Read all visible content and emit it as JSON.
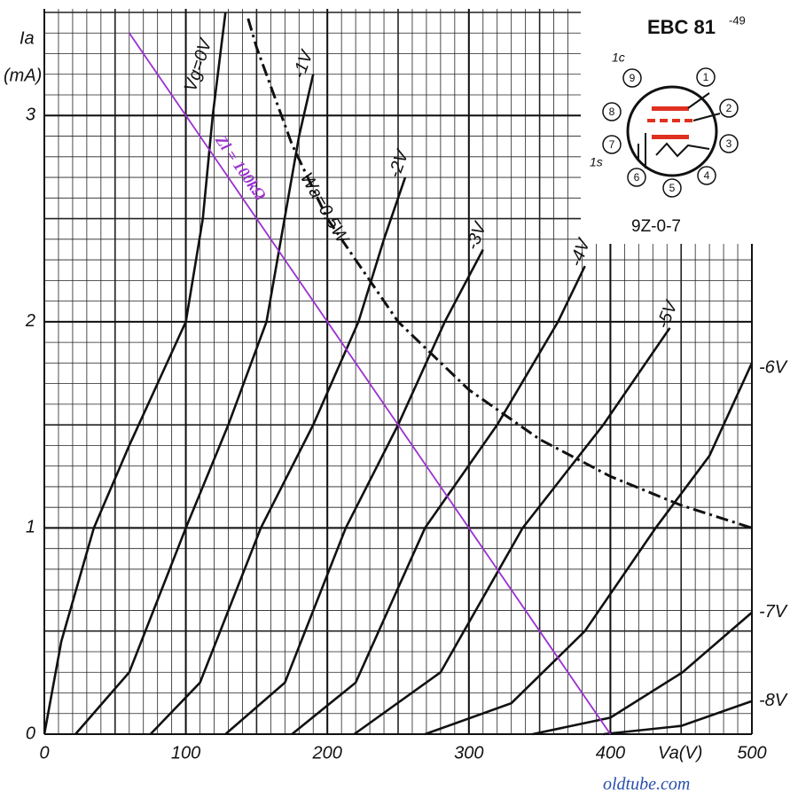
{
  "chart_data": {
    "type": "line",
    "y_label": "Ia",
    "y_unit": "(mA)",
    "x_label": "Va(V)",
    "xlim": [
      0,
      500
    ],
    "xticks": [
      0,
      100,
      200,
      300,
      400,
      500
    ],
    "ylim": [
      0,
      3.5
    ],
    "yticks": [
      0,
      1,
      2,
      3
    ],
    "grid": true,
    "series": [
      {
        "name": "Vg=0V",
        "color": "#111111",
        "x": [
          0,
          12,
          35,
          60,
          80,
          100,
          112,
          119,
          128
        ],
        "values": [
          0,
          0.45,
          1.0,
          1.4,
          1.7,
          2.0,
          2.5,
          3.0,
          3.5
        ]
      },
      {
        "name": "-1V",
        "color": "#111111",
        "x": [
          22,
          60,
          100,
          130,
          157,
          180,
          190
        ],
        "values": [
          0,
          0.3,
          1.0,
          1.5,
          2.0,
          2.9,
          3.2
        ]
      },
      {
        "name": "-2V",
        "color": "#111111",
        "x": [
          75,
          110,
          153,
          190,
          222,
          240,
          255
        ],
        "values": [
          0,
          0.25,
          1.0,
          1.5,
          2.0,
          2.4,
          2.7
        ]
      },
      {
        "name": "-3V",
        "color": "#111111",
        "x": [
          128,
          170,
          213,
          250,
          283,
          310
        ],
        "values": [
          0,
          0.25,
          1.0,
          1.5,
          2.0,
          2.35
        ]
      },
      {
        "name": "-4V",
        "color": "#111111",
        "x": [
          175,
          220,
          269,
          320,
          363,
          382
        ],
        "values": [
          0,
          0.25,
          1.0,
          1.5,
          2.0,
          2.27
        ]
      },
      {
        "name": "-5V",
        "color": "#111111",
        "x": [
          219,
          280,
          338,
          395,
          442
        ],
        "values": [
          0,
          0.3,
          1.0,
          1.5,
          1.97
        ]
      },
      {
        "name": "-6V",
        "color": "#111111",
        "x": [
          269,
          330,
          382,
          432,
          470,
          500
        ],
        "values": [
          0,
          0.15,
          0.5,
          1.0,
          1.35,
          1.8
        ]
      },
      {
        "name": "-7V",
        "color": "#111111",
        "x": [
          345,
          400,
          451,
          500
        ],
        "values": [
          0,
          0.08,
          0.3,
          0.59
        ]
      },
      {
        "name": "-8V",
        "color": "#111111",
        "x": [
          395,
          450,
          500
        ],
        "values": [
          0,
          0.04,
          0.16
        ]
      },
      {
        "name": "Wa=0.5W",
        "color": "#111111",
        "style": "dash-dot",
        "x": [
          144,
          150,
          175,
          200,
          250,
          300,
          350,
          400,
          450,
          500
        ],
        "values": [
          3.47,
          3.33,
          2.86,
          2.5,
          2.0,
          1.67,
          1.43,
          1.25,
          1.11,
          1.0
        ]
      },
      {
        "name": "Zl = 100kΩ",
        "color": "#9b30d0",
        "x": [
          60,
          400
        ],
        "values": [
          3.4,
          0
        ]
      }
    ]
  },
  "inset": {
    "title": "EBC 81",
    "superscript": "-49",
    "code": "9Z-0-7",
    "pins": [
      "1",
      "2",
      "3",
      "4",
      "5",
      "6",
      "7",
      "8",
      "9"
    ],
    "notes": [
      "1c",
      "1s"
    ]
  },
  "watermark": "oldtube.com"
}
